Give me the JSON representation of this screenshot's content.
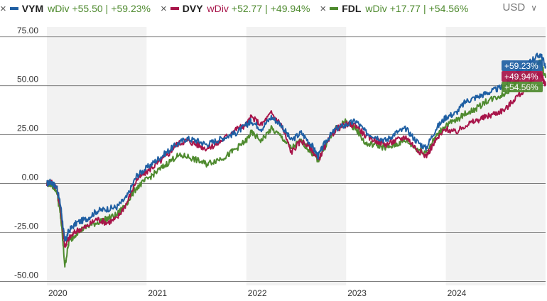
{
  "currency": {
    "label": "USD",
    "chevron_icon": "chevron-down-icon"
  },
  "legend": [
    {
      "ticker": "VYM",
      "basis": "wDiv",
      "change": "+55.50",
      "pct": "+59.23%",
      "color": "#1f5fa3"
    },
    {
      "ticker": "DVY",
      "basis": "wDiv",
      "change": "+52.77",
      "pct": "+49.94%",
      "color": "#a8154a"
    },
    {
      "ticker": "FDL",
      "basis": "wDiv",
      "change": "+17.77",
      "pct": "+54.56%",
      "color": "#4e8a2e"
    }
  ],
  "chart_data": {
    "type": "line",
    "ylim": [
      -52,
      80
    ],
    "yticks": [
      75,
      50,
      25,
      0,
      -25,
      -50
    ],
    "ytick_labels": [
      "75.00",
      "50.00",
      "25.00",
      "0.00",
      "-25.00",
      "-50.00"
    ],
    "xlim": [
      2020.0,
      2025.0
    ],
    "xticks": [
      2020,
      2021,
      2022,
      2023,
      2024
    ],
    "xtick_labels": [
      "2020",
      "2021",
      "2022",
      "2023",
      "2024"
    ],
    "grid": "horizontal",
    "series": [
      {
        "name": "VYM",
        "color": "#1f5fa3",
        "end_label": "+59.23%",
        "points": [
          [
            2020.0,
            0
          ],
          [
            2020.04,
            1
          ],
          [
            2020.1,
            -2
          ],
          [
            2020.14,
            -12
          ],
          [
            2020.18,
            -30
          ],
          [
            2020.22,
            -24
          ],
          [
            2020.3,
            -20
          ],
          [
            2020.4,
            -18
          ],
          [
            2020.5,
            -14
          ],
          [
            2020.6,
            -13
          ],
          [
            2020.7,
            -12
          ],
          [
            2020.8,
            -7
          ],
          [
            2020.9,
            4
          ],
          [
            2021.0,
            8
          ],
          [
            2021.1,
            12
          ],
          [
            2021.2,
            16
          ],
          [
            2021.3,
            20
          ],
          [
            2021.4,
            23
          ],
          [
            2021.5,
            22
          ],
          [
            2021.6,
            20
          ],
          [
            2021.7,
            22
          ],
          [
            2021.8,
            24
          ],
          [
            2021.9,
            26
          ],
          [
            2022.0,
            30
          ],
          [
            2022.05,
            32
          ],
          [
            2022.15,
            28
          ],
          [
            2022.25,
            34
          ],
          [
            2022.35,
            30
          ],
          [
            2022.45,
            22
          ],
          [
            2022.55,
            26
          ],
          [
            2022.65,
            20
          ],
          [
            2022.72,
            14
          ],
          [
            2022.8,
            22
          ],
          [
            2022.9,
            28
          ],
          [
            2023.0,
            30
          ],
          [
            2023.1,
            32
          ],
          [
            2023.2,
            26
          ],
          [
            2023.3,
            24
          ],
          [
            2023.4,
            22
          ],
          [
            2023.5,
            26
          ],
          [
            2023.6,
            28
          ],
          [
            2023.7,
            22
          ],
          [
            2023.8,
            18
          ],
          [
            2023.9,
            28
          ],
          [
            2024.0,
            34
          ],
          [
            2024.1,
            36
          ],
          [
            2024.2,
            42
          ],
          [
            2024.3,
            44
          ],
          [
            2024.4,
            46
          ],
          [
            2024.5,
            48
          ],
          [
            2024.6,
            50
          ],
          [
            2024.7,
            56
          ],
          [
            2024.8,
            60
          ],
          [
            2024.88,
            64
          ],
          [
            2024.95,
            66
          ],
          [
            2025.0,
            60
          ]
        ]
      },
      {
        "name": "DVY",
        "color": "#a8154a",
        "end_label": "+49.94%",
        "points": [
          [
            2020.0,
            0
          ],
          [
            2020.04,
            1
          ],
          [
            2020.1,
            -2
          ],
          [
            2020.14,
            -14
          ],
          [
            2020.18,
            -32
          ],
          [
            2020.22,
            -28
          ],
          [
            2020.3,
            -24
          ],
          [
            2020.4,
            -22
          ],
          [
            2020.5,
            -18
          ],
          [
            2020.6,
            -20
          ],
          [
            2020.7,
            -18
          ],
          [
            2020.8,
            -10
          ],
          [
            2020.9,
            2
          ],
          [
            2021.0,
            6
          ],
          [
            2021.1,
            10
          ],
          [
            2021.2,
            14
          ],
          [
            2021.3,
            20
          ],
          [
            2021.4,
            22
          ],
          [
            2021.5,
            20
          ],
          [
            2021.6,
            18
          ],
          [
            2021.7,
            20
          ],
          [
            2021.8,
            24
          ],
          [
            2021.9,
            28
          ],
          [
            2022.0,
            30
          ],
          [
            2022.05,
            34
          ],
          [
            2022.15,
            30
          ],
          [
            2022.25,
            36
          ],
          [
            2022.35,
            30
          ],
          [
            2022.45,
            16
          ],
          [
            2022.55,
            22
          ],
          [
            2022.65,
            18
          ],
          [
            2022.72,
            12
          ],
          [
            2022.8,
            20
          ],
          [
            2022.9,
            28
          ],
          [
            2023.0,
            30
          ],
          [
            2023.1,
            30
          ],
          [
            2023.2,
            24
          ],
          [
            2023.3,
            22
          ],
          [
            2023.4,
            20
          ],
          [
            2023.5,
            22
          ],
          [
            2023.6,
            24
          ],
          [
            2023.7,
            18
          ],
          [
            2023.8,
            14
          ],
          [
            2023.9,
            22
          ],
          [
            2024.0,
            28
          ],
          [
            2024.1,
            26
          ],
          [
            2024.2,
            30
          ],
          [
            2024.3,
            32
          ],
          [
            2024.4,
            34
          ],
          [
            2024.5,
            36
          ],
          [
            2024.6,
            38
          ],
          [
            2024.7,
            44
          ],
          [
            2024.8,
            48
          ],
          [
            2024.88,
            54
          ],
          [
            2024.95,
            56
          ],
          [
            2025.0,
            50
          ]
        ]
      },
      {
        "name": "FDL",
        "color": "#4e8a2e",
        "end_label": "+54.56%",
        "points": [
          [
            2020.0,
            0
          ],
          [
            2020.04,
            0
          ],
          [
            2020.1,
            -4
          ],
          [
            2020.14,
            -18
          ],
          [
            2020.18,
            -42
          ],
          [
            2020.22,
            -30
          ],
          [
            2020.3,
            -25
          ],
          [
            2020.4,
            -22
          ],
          [
            2020.5,
            -20
          ],
          [
            2020.6,
            -18
          ],
          [
            2020.7,
            -16
          ],
          [
            2020.8,
            -10
          ],
          [
            2020.9,
            -2
          ],
          [
            2021.0,
            2
          ],
          [
            2021.1,
            6
          ],
          [
            2021.2,
            10
          ],
          [
            2021.3,
            14
          ],
          [
            2021.4,
            14
          ],
          [
            2021.5,
            12
          ],
          [
            2021.6,
            10
          ],
          [
            2021.7,
            12
          ],
          [
            2021.8,
            14
          ],
          [
            2021.9,
            18
          ],
          [
            2022.0,
            22
          ],
          [
            2022.05,
            26
          ],
          [
            2022.15,
            22
          ],
          [
            2022.25,
            28
          ],
          [
            2022.35,
            24
          ],
          [
            2022.45,
            18
          ],
          [
            2022.55,
            22
          ],
          [
            2022.65,
            16
          ],
          [
            2022.72,
            12
          ],
          [
            2022.8,
            20
          ],
          [
            2022.9,
            28
          ],
          [
            2023.0,
            32
          ],
          [
            2023.1,
            28
          ],
          [
            2023.2,
            20
          ],
          [
            2023.3,
            20
          ],
          [
            2023.4,
            18
          ],
          [
            2023.5,
            20
          ],
          [
            2023.6,
            22
          ],
          [
            2023.7,
            18
          ],
          [
            2023.8,
            16
          ],
          [
            2023.9,
            24
          ],
          [
            2024.0,
            30
          ],
          [
            2024.1,
            32
          ],
          [
            2024.2,
            36
          ],
          [
            2024.3,
            38
          ],
          [
            2024.4,
            42
          ],
          [
            2024.5,
            44
          ],
          [
            2024.6,
            46
          ],
          [
            2024.7,
            52
          ],
          [
            2024.8,
            56
          ],
          [
            2024.88,
            60
          ],
          [
            2024.95,
            62
          ],
          [
            2025.0,
            54
          ]
        ]
      }
    ]
  }
}
